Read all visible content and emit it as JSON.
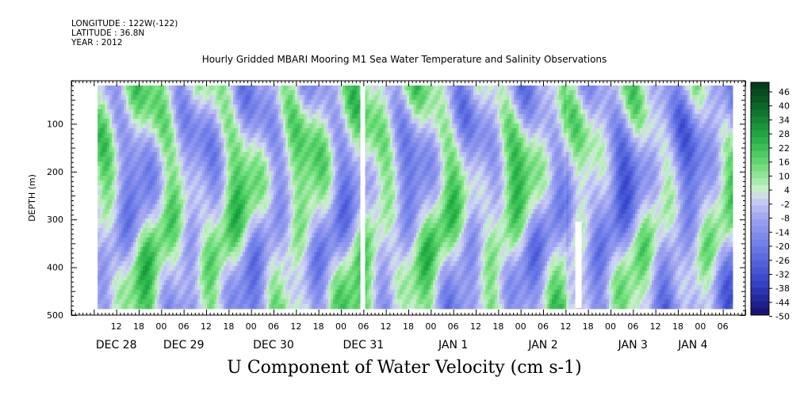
{
  "header": {
    "longitude": "LONGITUDE : 122W(-122)",
    "latitude": "LATITUDE : 36.8N",
    "year": "YEAR : 2012",
    "title": "Hourly Gridded MBARI Mooring M1 Sea Water Temperature and Salinity Observations"
  },
  "chart_data": {
    "type": "heatmap",
    "title": "Hourly Gridded MBARI Mooring M1 Sea Water Temperature and Salinity Observations",
    "xlabel": "U Component of Water Velocity (cm s-1)",
    "ylabel": "DEPTH (m)",
    "ylim": [
      500,
      10
    ],
    "y_ticks": [
      100,
      200,
      300,
      400,
      500
    ],
    "y_tick_labels": [
      "100",
      "200",
      "300",
      "400",
      "500"
    ],
    "x_tick_labels": [
      "12",
      "18",
      "00",
      "06",
      "12",
      "18",
      "00",
      "06",
      "12",
      "18",
      "00",
      "06",
      "12",
      "18",
      "00",
      "06",
      "12",
      "18",
      "00",
      "06",
      "12",
      "18",
      "00",
      "06",
      "12",
      "18",
      "00",
      "06"
    ],
    "x_tick_hours": [
      12,
      18,
      24,
      30,
      36,
      42,
      48,
      54,
      60,
      66,
      72,
      78,
      84,
      90,
      96,
      102,
      108,
      114,
      120,
      126,
      132,
      138,
      144,
      150,
      156,
      162,
      168,
      174
    ],
    "date_labels": [
      "DEC 28",
      "DEC 29",
      "DEC 30",
      "DEC 31",
      "JAN  1",
      "JAN  2",
      "JAN  3",
      "JAN  4"
    ],
    "date_label_hours": [
      12,
      30,
      54,
      78,
      102,
      126,
      150,
      166
    ],
    "x_range_hours": [
      0,
      180
    ],
    "data_range_hours": [
      7,
      176
    ],
    "data_depth_range": [
      20,
      485
    ],
    "colorbar": {
      "labels": [
        "46",
        "40",
        "34",
        "28",
        "22",
        "16",
        "10",
        "4",
        "-2",
        "-8",
        "-14",
        "-20",
        "-26",
        "-32",
        "-38",
        "-44",
        "-50"
      ],
      "min": -50,
      "max": 50
    },
    "grid": false,
    "legend_position": "right"
  }
}
